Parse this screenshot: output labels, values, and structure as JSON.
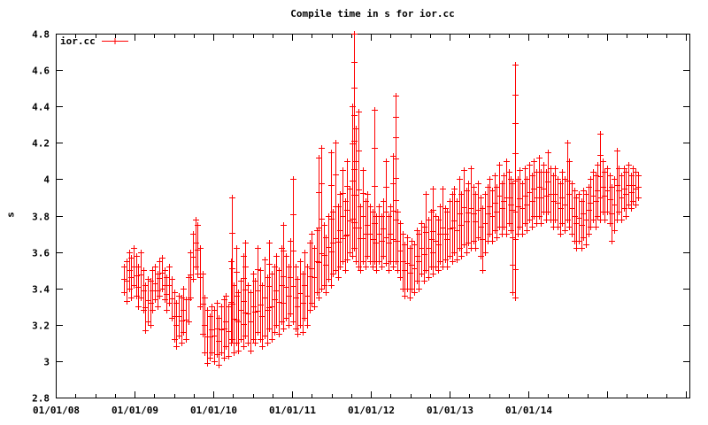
{
  "window": {
    "title": "Compile time in s for ior.cc"
  },
  "chart_data": {
    "type": "scatter",
    "subtype": "errorbars",
    "title": "Compile time in s for ior.cc",
    "xlabel": "",
    "ylabel": "s",
    "grid": false,
    "background": "#ffffff",
    "axis_color": "#000000",
    "series_color": "#ff0000",
    "legend": {
      "label": "ior.cc",
      "position": "top-left",
      "marker": "plus-with-line"
    },
    "x_axis": {
      "unit": "date (years since 2008-01-01)",
      "range_years": [
        0,
        8.05
      ],
      "major_tick_years": [
        0,
        1,
        2,
        3,
        4,
        5,
        6,
        7,
        8
      ],
      "minor_step_years": 0.25,
      "labels": [
        {
          "t": 0,
          "text": "01/01/08"
        },
        {
          "t": 1,
          "text": "01/01/09"
        },
        {
          "t": 2,
          "text": "01/01/10"
        },
        {
          "t": 3,
          "text": "01/01/11"
        },
        {
          "t": 4,
          "text": "01/01/12"
        },
        {
          "t": 5,
          "text": "01/01/13"
        },
        {
          "t": 6,
          "text": "01/01/14"
        }
      ]
    },
    "y_axis": {
      "label": "s",
      "range": [
        2.8,
        4.8
      ],
      "ticks": [
        {
          "v": 2.8,
          "text": "2.8"
        },
        {
          "v": 3.0,
          "text": "3"
        },
        {
          "v": 3.2,
          "text": "3.2"
        },
        {
          "v": 3.4,
          "text": "3.4"
        },
        {
          "v": 3.6,
          "text": "3.6"
        },
        {
          "v": 3.8,
          "text": "3.8"
        },
        {
          "v": 4.0,
          "text": "4"
        },
        {
          "v": 4.2,
          "text": "4.2"
        },
        {
          "v": 4.4,
          "text": "4.4"
        },
        {
          "v": 4.6,
          "text": "4.6"
        },
        {
          "v": 4.8,
          "text": "4.8"
        }
      ]
    },
    "notable_peaks": [
      {
        "t": 3.785,
        "value": 4.8,
        "note": "max spike late 2011"
      },
      {
        "t": 5.835,
        "value": 4.63,
        "note": "spike late 2013"
      },
      {
        "t": 4.31,
        "value": 4.46,
        "note": "spike mid 2012"
      },
      {
        "t": 2.24,
        "value": 3.9,
        "note": "isolated spike early 2010"
      }
    ],
    "series": [
      {
        "name": "ior.cc",
        "points_format": [
          "t_years_since_2008",
          "low",
          "high"
        ],
        "points": [
          [
            0.87,
            3.38,
            3.52
          ],
          [
            0.9,
            3.33,
            3.55
          ],
          [
            0.93,
            3.4,
            3.6
          ],
          [
            0.96,
            3.35,
            3.57
          ],
          [
            0.99,
            3.42,
            3.62
          ],
          [
            1.02,
            3.36,
            3.58
          ],
          [
            1.05,
            3.3,
            3.52
          ],
          [
            1.08,
            3.35,
            3.6
          ],
          [
            1.11,
            3.28,
            3.5
          ],
          [
            1.14,
            3.17,
            3.42
          ],
          [
            1.17,
            3.22,
            3.45
          ],
          [
            1.2,
            3.2,
            3.44
          ],
          [
            1.23,
            3.28,
            3.5
          ],
          [
            1.26,
            3.34,
            3.52
          ],
          [
            1.29,
            3.3,
            3.48
          ],
          [
            1.32,
            3.36,
            3.55
          ],
          [
            1.35,
            3.4,
            3.57
          ],
          [
            1.38,
            3.34,
            3.5
          ],
          [
            1.41,
            3.28,
            3.46
          ],
          [
            1.44,
            3.32,
            3.52
          ],
          [
            1.47,
            3.24,
            3.45
          ],
          [
            1.5,
            3.12,
            3.38
          ],
          [
            1.53,
            3.08,
            3.32
          ],
          [
            1.56,
            3.14,
            3.36
          ],
          [
            1.59,
            3.1,
            3.35
          ],
          [
            1.62,
            3.16,
            3.4
          ],
          [
            1.65,
            3.12,
            3.34
          ],
          [
            1.68,
            3.22,
            3.46
          ],
          [
            1.71,
            3.35,
            3.6
          ],
          [
            1.74,
            3.45,
            3.7
          ],
          [
            1.77,
            3.52,
            3.78
          ],
          [
            1.8,
            3.48,
            3.75
          ],
          [
            1.83,
            3.3,
            3.62
          ],
          [
            1.86,
            3.15,
            3.48
          ],
          [
            1.89,
            3.05,
            3.35
          ],
          [
            1.92,
            2.99,
            3.28
          ],
          [
            1.95,
            3.02,
            3.25
          ],
          [
            1.98,
            3.05,
            3.3
          ],
          [
            2.01,
            3.0,
            3.28
          ],
          [
            2.04,
            3.04,
            3.32
          ],
          [
            2.07,
            2.98,
            3.24
          ],
          [
            2.1,
            3.05,
            3.3
          ],
          [
            2.13,
            3.02,
            3.34
          ],
          [
            2.16,
            3.08,
            3.36
          ],
          [
            2.19,
            3.03,
            3.3
          ],
          [
            2.22,
            3.1,
            3.55
          ],
          [
            2.24,
            3.12,
            3.9
          ],
          [
            2.26,
            3.05,
            3.42
          ],
          [
            2.29,
            3.1,
            3.62
          ],
          [
            2.32,
            3.06,
            3.38
          ],
          [
            2.35,
            3.12,
            3.44
          ],
          [
            2.38,
            3.08,
            3.58
          ],
          [
            2.41,
            3.14,
            3.65
          ],
          [
            2.44,
            3.1,
            3.42
          ],
          [
            2.47,
            3.06,
            3.38
          ],
          [
            2.5,
            3.12,
            3.48
          ],
          [
            2.53,
            3.1,
            3.44
          ],
          [
            2.56,
            3.16,
            3.62
          ],
          [
            2.59,
            3.12,
            3.5
          ],
          [
            2.62,
            3.08,
            3.42
          ],
          [
            2.65,
            3.14,
            3.56
          ],
          [
            2.68,
            3.1,
            3.46
          ],
          [
            2.71,
            3.18,
            3.65
          ],
          [
            2.74,
            3.12,
            3.48
          ],
          [
            2.77,
            3.16,
            3.52
          ],
          [
            2.8,
            3.2,
            3.58
          ],
          [
            2.83,
            3.15,
            3.5
          ],
          [
            2.86,
            3.22,
            3.62
          ],
          [
            2.89,
            3.18,
            3.75
          ],
          [
            2.92,
            3.24,
            3.58
          ],
          [
            2.95,
            3.2,
            3.52
          ],
          [
            2.98,
            3.26,
            3.66
          ],
          [
            3.01,
            3.22,
            4.0
          ],
          [
            3.04,
            3.18,
            3.52
          ],
          [
            3.07,
            3.15,
            3.45
          ],
          [
            3.1,
            3.2,
            3.55
          ],
          [
            3.13,
            3.16,
            3.48
          ],
          [
            3.16,
            3.24,
            3.6
          ],
          [
            3.19,
            3.2,
            3.52
          ],
          [
            3.22,
            3.28,
            3.65
          ],
          [
            3.25,
            3.32,
            3.7
          ],
          [
            3.28,
            3.3,
            3.62
          ],
          [
            3.31,
            3.38,
            3.72
          ],
          [
            3.34,
            3.35,
            4.12
          ],
          [
            3.37,
            3.4,
            4.17
          ],
          [
            3.4,
            3.42,
            3.75
          ],
          [
            3.43,
            3.38,
            3.68
          ],
          [
            3.46,
            3.45,
            3.8
          ],
          [
            3.49,
            3.42,
            4.15
          ],
          [
            3.52,
            3.48,
            3.82
          ],
          [
            3.55,
            3.5,
            4.2
          ],
          [
            3.58,
            3.46,
            3.85
          ],
          [
            3.61,
            3.52,
            3.92
          ],
          [
            3.64,
            3.55,
            4.05
          ],
          [
            3.67,
            3.5,
            3.88
          ],
          [
            3.7,
            3.56,
            4.1
          ],
          [
            3.73,
            3.6,
            3.95
          ],
          [
            3.76,
            3.58,
            4.4
          ],
          [
            3.785,
            3.62,
            4.8
          ],
          [
            3.81,
            3.55,
            4.28
          ],
          [
            3.84,
            3.52,
            4.37
          ],
          [
            3.87,
            3.5,
            3.85
          ],
          [
            3.9,
            3.55,
            4.05
          ],
          [
            3.93,
            3.52,
            3.88
          ],
          [
            3.96,
            3.58,
            3.92
          ],
          [
            3.99,
            3.55,
            3.85
          ],
          [
            4.02,
            3.52,
            3.82
          ],
          [
            4.045,
            3.55,
            4.38
          ],
          [
            4.07,
            3.5,
            3.8
          ],
          [
            4.1,
            3.55,
            3.85
          ],
          [
            4.13,
            3.52,
            3.8
          ],
          [
            4.16,
            3.58,
            3.88
          ],
          [
            4.19,
            3.54,
            4.1
          ],
          [
            4.22,
            3.5,
            3.8
          ],
          [
            4.25,
            3.55,
            3.85
          ],
          [
            4.28,
            3.52,
            4.13
          ],
          [
            4.31,
            3.55,
            4.46
          ],
          [
            4.34,
            3.5,
            3.82
          ],
          [
            4.37,
            3.46,
            3.76
          ],
          [
            4.4,
            3.4,
            3.7
          ],
          [
            4.43,
            3.36,
            3.64
          ],
          [
            4.46,
            3.4,
            3.68
          ],
          [
            4.49,
            3.35,
            3.62
          ],
          [
            4.52,
            3.4,
            3.66
          ],
          [
            4.55,
            3.38,
            3.64
          ],
          [
            4.58,
            3.44,
            3.72
          ],
          [
            4.61,
            3.4,
            3.7
          ],
          [
            4.64,
            3.48,
            3.76
          ],
          [
            4.67,
            3.44,
            3.74
          ],
          [
            4.7,
            3.5,
            3.92
          ],
          [
            4.73,
            3.46,
            3.78
          ],
          [
            4.76,
            3.52,
            3.82
          ],
          [
            4.79,
            3.48,
            3.95
          ],
          [
            4.82,
            3.52,
            3.8
          ],
          [
            4.85,
            3.5,
            3.78
          ],
          [
            4.88,
            3.55,
            3.85
          ],
          [
            4.91,
            3.52,
            3.95
          ],
          [
            4.94,
            3.56,
            3.84
          ],
          [
            4.97,
            3.52,
            3.82
          ],
          [
            5.0,
            3.58,
            3.88
          ],
          [
            5.03,
            3.55,
            3.92
          ],
          [
            5.06,
            3.6,
            3.95
          ],
          [
            5.09,
            3.56,
            3.88
          ],
          [
            5.12,
            3.62,
            4.0
          ],
          [
            5.15,
            3.58,
            3.92
          ],
          [
            5.18,
            3.64,
            4.05
          ],
          [
            5.21,
            3.6,
            3.94
          ],
          [
            5.24,
            3.65,
            3.98
          ],
          [
            5.27,
            3.62,
            4.06
          ],
          [
            5.3,
            3.66,
            3.96
          ],
          [
            5.33,
            3.62,
            3.92
          ],
          [
            5.36,
            3.68,
            3.98
          ],
          [
            5.39,
            3.58,
            3.9
          ],
          [
            5.42,
            3.5,
            3.84
          ],
          [
            5.45,
            3.6,
            3.92
          ],
          [
            5.48,
            3.66,
            3.96
          ],
          [
            5.51,
            3.7,
            4.0
          ],
          [
            5.54,
            3.66,
            3.94
          ],
          [
            5.57,
            3.72,
            4.02
          ],
          [
            5.6,
            3.68,
            3.96
          ],
          [
            5.63,
            3.74,
            4.08
          ],
          [
            5.66,
            3.7,
            3.98
          ],
          [
            5.69,
            3.74,
            4.02
          ],
          [
            5.72,
            3.7,
            4.1
          ],
          [
            5.75,
            3.76,
            4.04
          ],
          [
            5.78,
            3.72,
            4.0
          ],
          [
            5.8,
            3.38,
            3.98
          ],
          [
            5.835,
            3.35,
            4.63
          ],
          [
            5.86,
            3.7,
            4.0
          ],
          [
            5.89,
            3.74,
            4.05
          ],
          [
            5.92,
            3.7,
            3.98
          ],
          [
            5.95,
            3.76,
            4.06
          ],
          [
            5.98,
            3.72,
            4.0
          ],
          [
            6.01,
            3.78,
            4.08
          ],
          [
            6.04,
            3.74,
            4.02
          ],
          [
            6.07,
            3.8,
            4.1
          ],
          [
            6.1,
            3.76,
            4.04
          ],
          [
            6.13,
            3.8,
            4.12
          ],
          [
            6.16,
            3.76,
            4.04
          ],
          [
            6.19,
            3.82,
            4.08
          ],
          [
            6.22,
            3.78,
            4.04
          ],
          [
            6.25,
            3.82,
            4.15
          ],
          [
            6.28,
            3.78,
            4.06
          ],
          [
            6.31,
            3.74,
            4.02
          ],
          [
            6.34,
            3.78,
            4.06
          ],
          [
            6.37,
            3.74,
            4.0
          ],
          [
            6.4,
            3.7,
            3.98
          ],
          [
            6.43,
            3.76,
            4.04
          ],
          [
            6.46,
            3.72,
            4.0
          ],
          [
            6.49,
            3.78,
            4.2
          ],
          [
            6.52,
            3.74,
            4.1
          ],
          [
            6.55,
            3.7,
            3.98
          ],
          [
            6.58,
            3.66,
            3.94
          ],
          [
            6.61,
            3.62,
            3.9
          ],
          [
            6.64,
            3.66,
            3.92
          ],
          [
            6.67,
            3.62,
            3.88
          ],
          [
            6.7,
            3.68,
            3.94
          ],
          [
            6.73,
            3.64,
            3.92
          ],
          [
            6.76,
            3.7,
            3.96
          ],
          [
            6.79,
            3.74,
            4.0
          ],
          [
            6.82,
            3.78,
            4.04
          ],
          [
            6.85,
            3.74,
            4.02
          ],
          [
            6.88,
            3.8,
            4.08
          ],
          [
            6.91,
            3.78,
            4.25
          ],
          [
            6.94,
            3.82,
            4.1
          ],
          [
            6.97,
            3.78,
            4.04
          ],
          [
            7.0,
            3.82,
            4.06
          ],
          [
            7.03,
            3.76,
            4.02
          ],
          [
            7.06,
            3.66,
            3.96
          ],
          [
            7.09,
            3.72,
            4.0
          ],
          [
            7.12,
            3.78,
            4.16
          ],
          [
            7.15,
            3.82,
            4.06
          ],
          [
            7.18,
            3.78,
            4.02
          ],
          [
            7.21,
            3.84,
            4.06
          ],
          [
            7.24,
            3.8,
            4.04
          ],
          [
            7.27,
            3.86,
            4.08
          ],
          [
            7.3,
            3.84,
            4.02
          ],
          [
            7.33,
            3.88,
            4.06
          ],
          [
            7.36,
            3.86,
            4.04
          ],
          [
            7.39,
            3.9,
            4.02
          ]
        ]
      }
    ]
  }
}
